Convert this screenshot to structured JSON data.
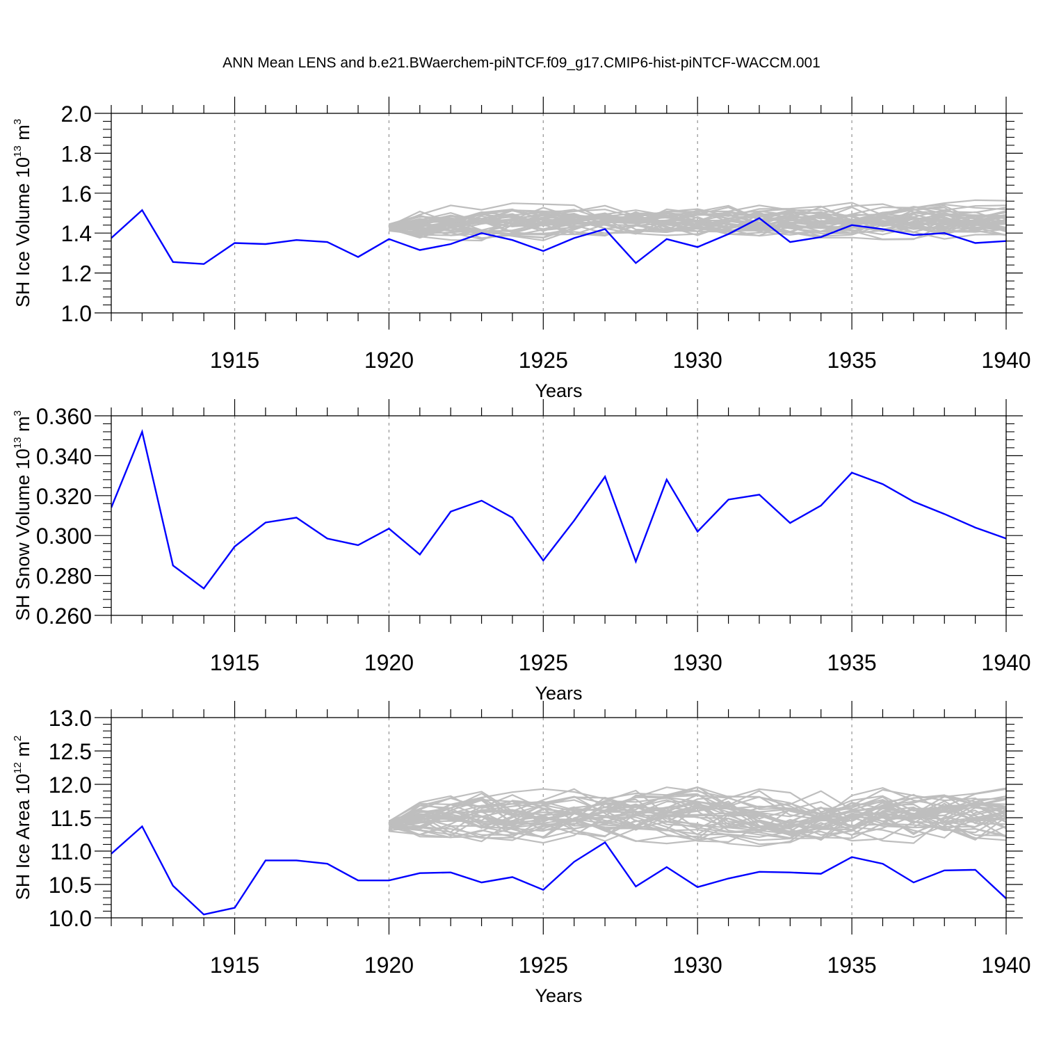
{
  "figure": {
    "title": "ANN Mean LENS and b.e21.BWaerchem-piNTCF.f09_g17.CMIP6-hist-piNTCF-WACCM.001"
  },
  "colors": {
    "simulation": "#0000ff",
    "ensemble": "#bebebe",
    "grid": "#9a9a9a",
    "axis": "#000000"
  },
  "chart_data": [
    {
      "type": "line",
      "xlabel": "Years",
      "ylabel_parts": [
        "SH Ice Volume 10",
        "13",
        " m",
        "3"
      ],
      "xlim": [
        1911,
        1940
      ],
      "ylim": [
        1.0,
        2.0
      ],
      "xticks": [
        1915,
        1920,
        1925,
        1930,
        1935,
        1940
      ],
      "yticks": [
        1.0,
        1.2,
        1.4,
        1.6,
        1.8,
        2.0
      ],
      "ytick_decimals": 1,
      "grid_x": true,
      "ensemble": {
        "start": 1920,
        "end": 1940,
        "members": 40,
        "center": 1.45,
        "spread": 0.07,
        "seed": 11
      },
      "series": [
        {
          "x": [
            1911,
            1912,
            1913,
            1914,
            1915,
            1916,
            1917,
            1918,
            1919,
            1920,
            1921,
            1922,
            1923,
            1924,
            1925,
            1926,
            1927,
            1928,
            1929,
            1930,
            1931,
            1932,
            1933,
            1934,
            1935,
            1936,
            1937,
            1938,
            1939,
            1940
          ],
          "y": [
            1.375,
            1.515,
            1.255,
            1.245,
            1.35,
            1.345,
            1.365,
            1.355,
            1.28,
            1.37,
            1.315,
            1.345,
            1.4,
            1.365,
            1.31,
            1.375,
            1.42,
            1.25,
            1.37,
            1.33,
            1.395,
            1.475,
            1.355,
            1.38,
            1.44,
            1.42,
            1.39,
            1.4,
            1.35,
            1.36
          ]
        }
      ]
    },
    {
      "type": "line",
      "xlabel": "Years",
      "ylabel_parts": [
        "SH Snow Volume 10",
        "13",
        " m",
        "3"
      ],
      "xlim": [
        1911,
        1940
      ],
      "ylim": [
        0.26,
        0.36
      ],
      "xticks": [
        1915,
        1920,
        1925,
        1930,
        1935,
        1940
      ],
      "yticks": [
        0.26,
        0.28,
        0.3,
        0.32,
        0.34,
        0.36
      ],
      "ytick_decimals": 3,
      "grid_x": true,
      "series": [
        {
          "x": [
            1911,
            1912,
            1913,
            1914,
            1915,
            1916,
            1917,
            1918,
            1919,
            1920,
            1921,
            1922,
            1923,
            1924,
            1925,
            1926,
            1927,
            1928,
            1929,
            1930,
            1931,
            1932,
            1933,
            1934,
            1935,
            1936,
            1937,
            1938,
            1939,
            1940
          ],
          "y": [
            0.314,
            0.352,
            0.285,
            0.2735,
            0.2945,
            0.3065,
            0.309,
            0.2985,
            0.2952,
            0.3035,
            0.2905,
            0.312,
            0.3175,
            0.309,
            0.2875,
            0.3075,
            0.3295,
            0.287,
            0.328,
            0.302,
            0.318,
            0.3205,
            0.3063,
            0.315,
            0.3315,
            0.3258,
            0.317,
            0.3108,
            0.304,
            0.2985
          ]
        }
      ]
    },
    {
      "type": "line",
      "xlabel": "Years",
      "ylabel_parts": [
        "SH Ice Area 10",
        "12",
        " m",
        "2"
      ],
      "xlim": [
        1911,
        1940
      ],
      "ylim": [
        10.0,
        13.0
      ],
      "xticks": [
        1915,
        1920,
        1925,
        1930,
        1935,
        1940
      ],
      "yticks": [
        10.0,
        10.5,
        11.0,
        11.5,
        12.0,
        12.5,
        13.0
      ],
      "ytick_decimals": 1,
      "grid_x": true,
      "ensemble": {
        "start": 1920,
        "end": 1940,
        "members": 40,
        "center": 11.55,
        "spread": 0.32,
        "seed": 29
      },
      "series": [
        {
          "x": [
            1911,
            1912,
            1913,
            1914,
            1915,
            1916,
            1917,
            1918,
            1919,
            1920,
            1921,
            1922,
            1923,
            1924,
            1925,
            1926,
            1927,
            1928,
            1929,
            1930,
            1931,
            1932,
            1933,
            1934,
            1935,
            1936,
            1937,
            1938,
            1939,
            1940
          ],
          "y": [
            10.96,
            11.37,
            10.48,
            10.05,
            10.15,
            10.86,
            10.86,
            10.81,
            10.56,
            10.56,
            10.67,
            10.68,
            10.53,
            10.61,
            10.42,
            10.84,
            11.13,
            10.47,
            10.76,
            10.46,
            10.59,
            10.69,
            10.68,
            10.66,
            10.91,
            10.81,
            10.53,
            10.71,
            10.72,
            10.29
          ]
        }
      ]
    }
  ]
}
